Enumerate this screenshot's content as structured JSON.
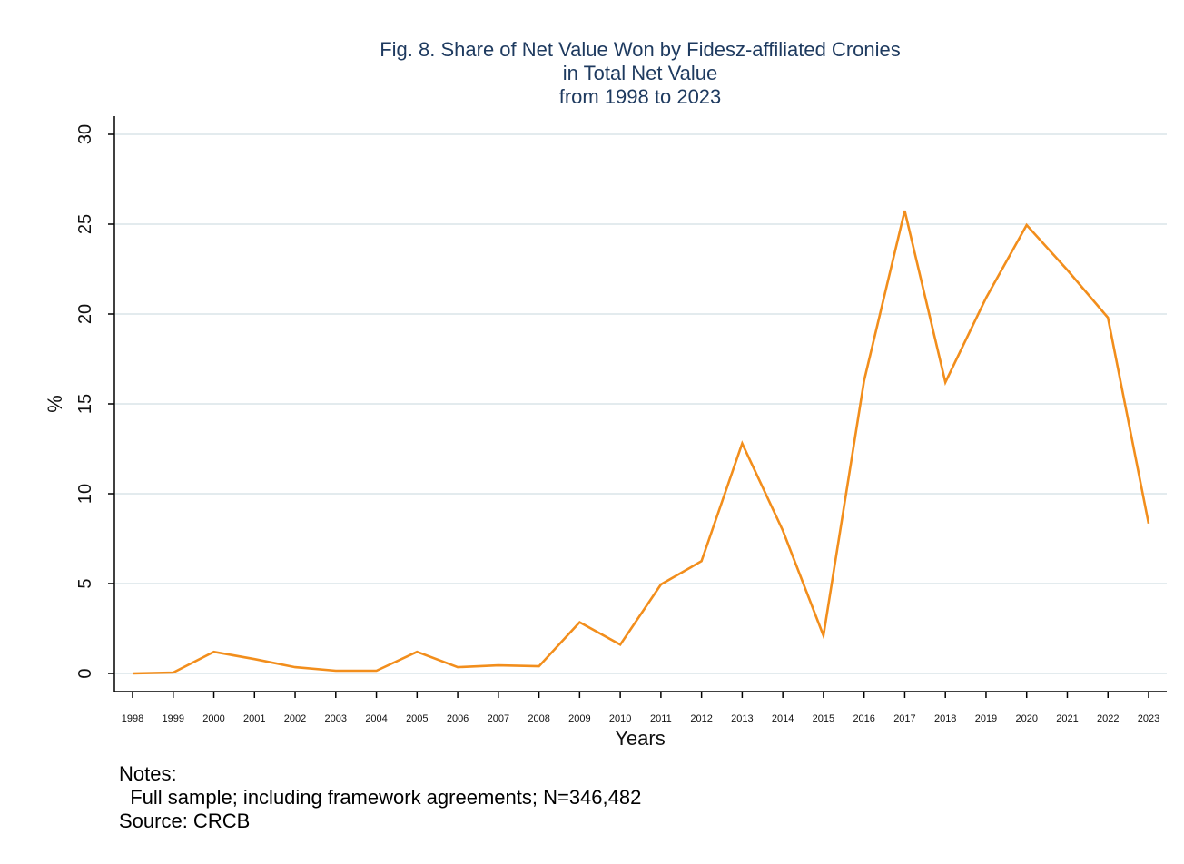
{
  "chart_data": {
    "type": "line",
    "title_lines": [
      "Fig. 8. Share of Net Value Won by Fidesz-affiliated Cronies",
      "in Total Net Value",
      "from 1998 to 2023"
    ],
    "xlabel": "Years",
    "ylabel": "%",
    "ylim": [
      0,
      30
    ],
    "yticks": [
      "0",
      "5",
      "10",
      "15",
      "20",
      "25",
      "30"
    ],
    "grid": "horizontal",
    "x": [
      "1998",
      "1999",
      "2000",
      "2001",
      "2002",
      "2003",
      "2004",
      "2005",
      "2006",
      "2007",
      "2008",
      "2009",
      "2010",
      "2011",
      "2012",
      "2013",
      "2014",
      "2015",
      "2016",
      "2017",
      "2018",
      "2019",
      "2020",
      "2021",
      "2022",
      "2023"
    ],
    "series": [
      {
        "values": [
          0.0,
          0.05,
          1.2,
          0.8,
          0.35,
          0.15,
          0.15,
          1.2,
          0.35,
          0.45,
          0.4,
          2.85,
          1.6,
          4.95,
          6.25,
          12.8,
          7.95,
          2.1,
          16.3,
          25.75,
          16.2,
          20.9,
          24.95,
          22.45,
          19.8,
          8.35
        ]
      }
    ],
    "colors": {
      "line": "#f28e1c",
      "grid": "#e3ebee",
      "axis": "#000000",
      "title": "#1e3a5f"
    }
  },
  "notes": {
    "heading": "Notes:",
    "line1": "  Full sample; including framework agreements; N=346,482",
    "source": "Source: CRCB"
  }
}
